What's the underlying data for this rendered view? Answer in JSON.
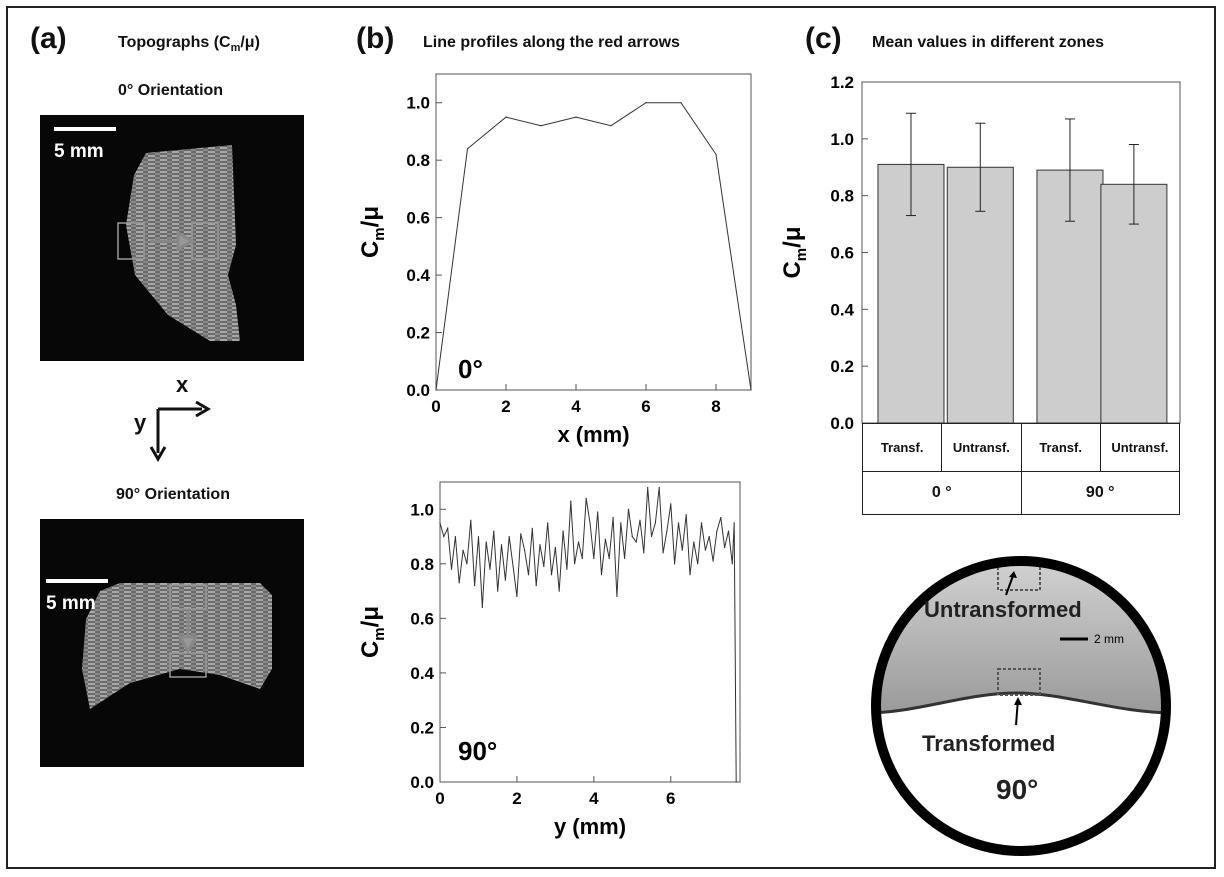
{
  "panel_a": {
    "letter": "(a)",
    "title": "Topographs (C",
    "title_sub": "m",
    "title_end": "/μ)",
    "top_caption": "0° Orientation",
    "bottom_caption": "90° Orientation",
    "scale_label": "5 mm",
    "axis_x": "x",
    "axis_y": "y"
  },
  "panel_b": {
    "letter": "(b)",
    "title": "Line profiles along the red arrows"
  },
  "panel_c": {
    "letter": "(c)",
    "title": "Mean values in different zones",
    "table_row1": [
      "Transf.",
      "Untransf.",
      "Transf.",
      "Untransf."
    ],
    "table_row2": [
      "0 °",
      "90 °"
    ]
  },
  "photo": {
    "label_top": "Untransformed",
    "label_bottom": "Transformed",
    "scale": "2 mm",
    "angle": "90°"
  },
  "colors": {
    "bar_fill": "#cdcdcd",
    "line": "#333333",
    "background_dark": "#070707"
  },
  "chart_data": [
    {
      "type": "line",
      "annotation": "0°",
      "xlabel": "x (mm)",
      "ylabel_main": "C",
      "ylabel_sub": "m",
      "ylabel_end": "/μ",
      "xlim": [
        0,
        9
      ],
      "ylim": [
        0,
        1.1
      ],
      "xticks": [
        0,
        2,
        4,
        6,
        8
      ],
      "yticks": [
        0.0,
        0.2,
        0.4,
        0.6,
        0.8,
        1.0
      ],
      "ytick_labels": [
        "0.0",
        "0.2",
        "0.4",
        "0.6",
        "0.8",
        "1.0"
      ],
      "x": [
        0,
        0.9,
        2,
        3,
        4,
        5,
        6,
        7,
        8,
        9
      ],
      "y": [
        0.0,
        0.84,
        0.95,
        0.92,
        0.95,
        0.92,
        1.0,
        1.0,
        0.82,
        0.0
      ]
    },
    {
      "type": "line",
      "annotation": "90°",
      "xlabel": "y (mm)",
      "ylabel_main": "C",
      "ylabel_sub": "m",
      "ylabel_end": "/μ",
      "xlim": [
        0,
        7.8
      ],
      "ylim": [
        0,
        1.1
      ],
      "xticks": [
        0,
        2,
        4,
        6
      ],
      "yticks": [
        0.0,
        0.2,
        0.4,
        0.6,
        0.8,
        1.0
      ],
      "ytick_labels": [
        "0.0",
        "0.2",
        "0.4",
        "0.6",
        "0.8",
        "1.0"
      ],
      "x": [
        0,
        0.1,
        0.2,
        0.3,
        0.4,
        0.5,
        0.6,
        0.7,
        0.8,
        0.9,
        1.0,
        1.1,
        1.2,
        1.3,
        1.4,
        1.5,
        1.6,
        1.7,
        1.8,
        1.9,
        2.0,
        2.1,
        2.2,
        2.3,
        2.4,
        2.5,
        2.6,
        2.7,
        2.8,
        2.9,
        3.0,
        3.1,
        3.2,
        3.3,
        3.4,
        3.5,
        3.6,
        3.7,
        3.8,
        3.9,
        4.0,
        4.1,
        4.2,
        4.3,
        4.4,
        4.5,
        4.6,
        4.7,
        4.8,
        4.9,
        5.0,
        5.1,
        5.2,
        5.3,
        5.4,
        5.5,
        5.6,
        5.7,
        5.8,
        5.9,
        6.0,
        6.1,
        6.2,
        6.3,
        6.4,
        6.5,
        6.6,
        6.7,
        6.8,
        6.9,
        7.0,
        7.1,
        7.2,
        7.3,
        7.4,
        7.5,
        7.6,
        7.65,
        7.7
      ],
      "y": [
        0.95,
        0.9,
        0.93,
        0.78,
        0.9,
        0.73,
        0.85,
        0.8,
        0.96,
        0.72,
        0.9,
        0.64,
        0.88,
        0.78,
        0.92,
        0.7,
        0.87,
        0.74,
        0.9,
        0.79,
        0.68,
        0.91,
        0.85,
        0.76,
        0.93,
        0.72,
        0.87,
        0.79,
        0.95,
        0.76,
        0.86,
        0.7,
        0.92,
        0.78,
        1.03,
        0.8,
        0.88,
        0.82,
        1.04,
        0.95,
        0.82,
        0.99,
        0.76,
        0.89,
        0.82,
        0.97,
        0.68,
        0.95,
        0.82,
        1.0,
        0.9,
        0.88,
        0.96,
        0.84,
        1.08,
        0.9,
        0.95,
        1.08,
        0.84,
        0.92,
        1.02,
        0.8,
        0.95,
        0.85,
        0.98,
        0.76,
        0.88,
        0.8,
        0.95,
        0.85,
        0.9,
        0.81,
        0.92,
        0.97,
        0.86,
        0.92,
        0.8,
        0.95,
        0.0
      ]
    },
    {
      "type": "bar",
      "ylabel_main": "C",
      "ylabel_sub": "m",
      "ylabel_end": "/μ",
      "ylim": [
        0,
        1.2
      ],
      "yticks": [
        0.0,
        0.2,
        0.4,
        0.6,
        0.8,
        1.0,
        1.2
      ],
      "ytick_labels": [
        "0.0",
        "0.2",
        "0.4",
        "0.6",
        "0.8",
        "1.0",
        "1.2"
      ],
      "categories": [
        "0° Transf.",
        "0° Untransf.",
        "90° Transf.",
        "90° Untransf."
      ],
      "values": [
        0.91,
        0.9,
        0.89,
        0.84
      ],
      "errors": [
        0.18,
        0.155,
        0.18,
        0.14
      ]
    }
  ]
}
